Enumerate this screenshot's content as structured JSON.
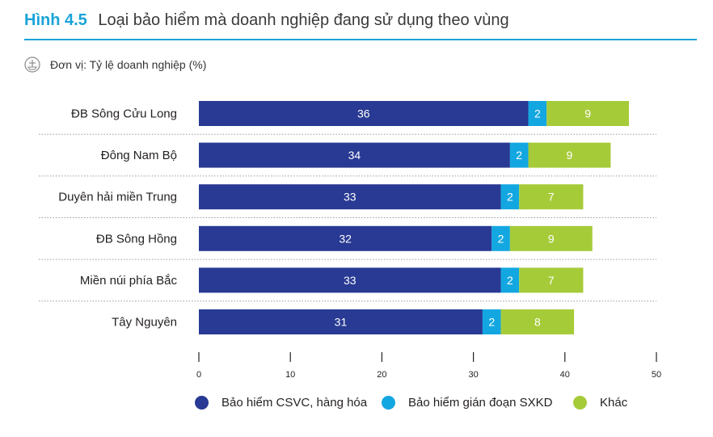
{
  "header": {
    "figure_label": "Hình 4.5",
    "title": "Loại bảo hiểm mà doanh nghiệp đang sử dụng theo vùng",
    "unit": "Đơn vị: Tỷ lệ doanh nghiệp (%)",
    "unit_icon": "unit-scale-icon"
  },
  "colors": {
    "accent": "#1aa3d9",
    "series1": "#283a93",
    "series2": "#13a7e1",
    "series3": "#a6cb39"
  },
  "chart_data": {
    "type": "bar",
    "orientation": "horizontal",
    "stacked": true,
    "title": "Loại bảo hiểm mà doanh nghiệp đang sử dụng theo vùng",
    "xlabel": "",
    "ylabel": "",
    "xlim": [
      0,
      50
    ],
    "xticks": [
      0,
      10,
      20,
      30,
      40,
      50
    ],
    "categories": [
      "ĐB Sông Cửu Long",
      "Đông Nam Bộ",
      "Duyên hải miền Trung",
      "ĐB Sông Hồng",
      "Miền núi phía Bắc",
      "Tây Nguyên"
    ],
    "series": [
      {
        "name": "Bảo hiểm CSVC, hàng hóa",
        "values": [
          36,
          34,
          33,
          32,
          33,
          31
        ]
      },
      {
        "name": "Bảo hiểm gián đoạn SXKD",
        "values": [
          2,
          2,
          2,
          2,
          2,
          2
        ]
      },
      {
        "name": "Khác",
        "values": [
          9,
          9,
          7,
          9,
          7,
          8
        ]
      }
    ],
    "legend_position": "bottom"
  }
}
